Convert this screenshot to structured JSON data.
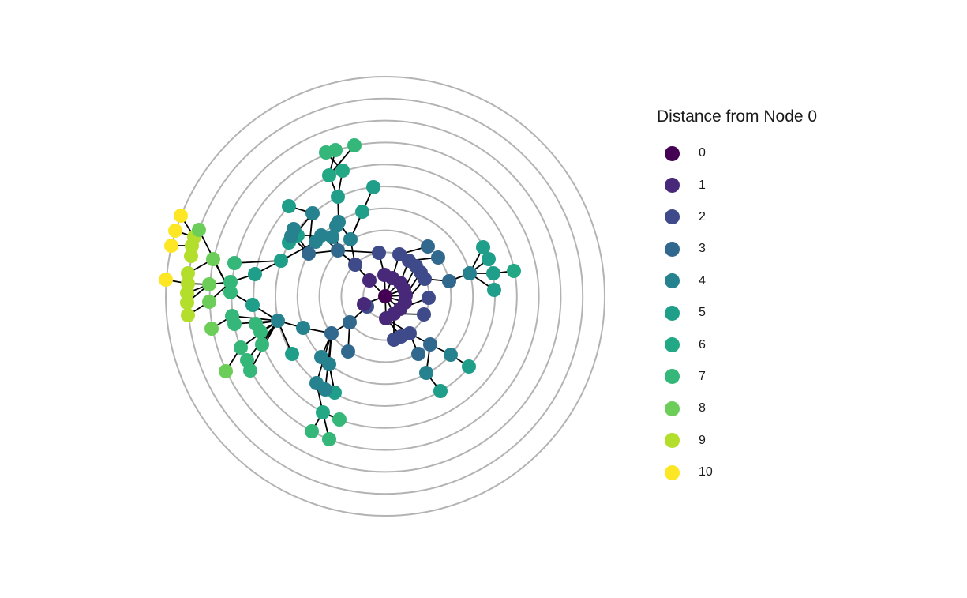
{
  "chart_data": {
    "type": "radial-network",
    "center_node": "0",
    "ring_count": 10,
    "legend": {
      "title": "Distance from Node 0",
      "entries": [
        {
          "label": "0",
          "color": "#440154"
        },
        {
          "label": "1",
          "color": "#482878"
        },
        {
          "label": "2",
          "color": "#3E4A89"
        },
        {
          "label": "3",
          "color": "#31688E"
        },
        {
          "label": "4",
          "color": "#26828E"
        },
        {
          "label": "5",
          "color": "#1F9E89"
        },
        {
          "label": "6",
          "color": "#22A884"
        },
        {
          "label": "7",
          "color": "#35B779"
        },
        {
          "label": "8",
          "color": "#6DCD59"
        },
        {
          "label": "9",
          "color": "#B4DE2C"
        },
        {
          "label": "10",
          "color": "#FDE725"
        }
      ]
    },
    "colors": {
      "ring": "#b3b3b3",
      "edge": "#000000"
    }
  }
}
